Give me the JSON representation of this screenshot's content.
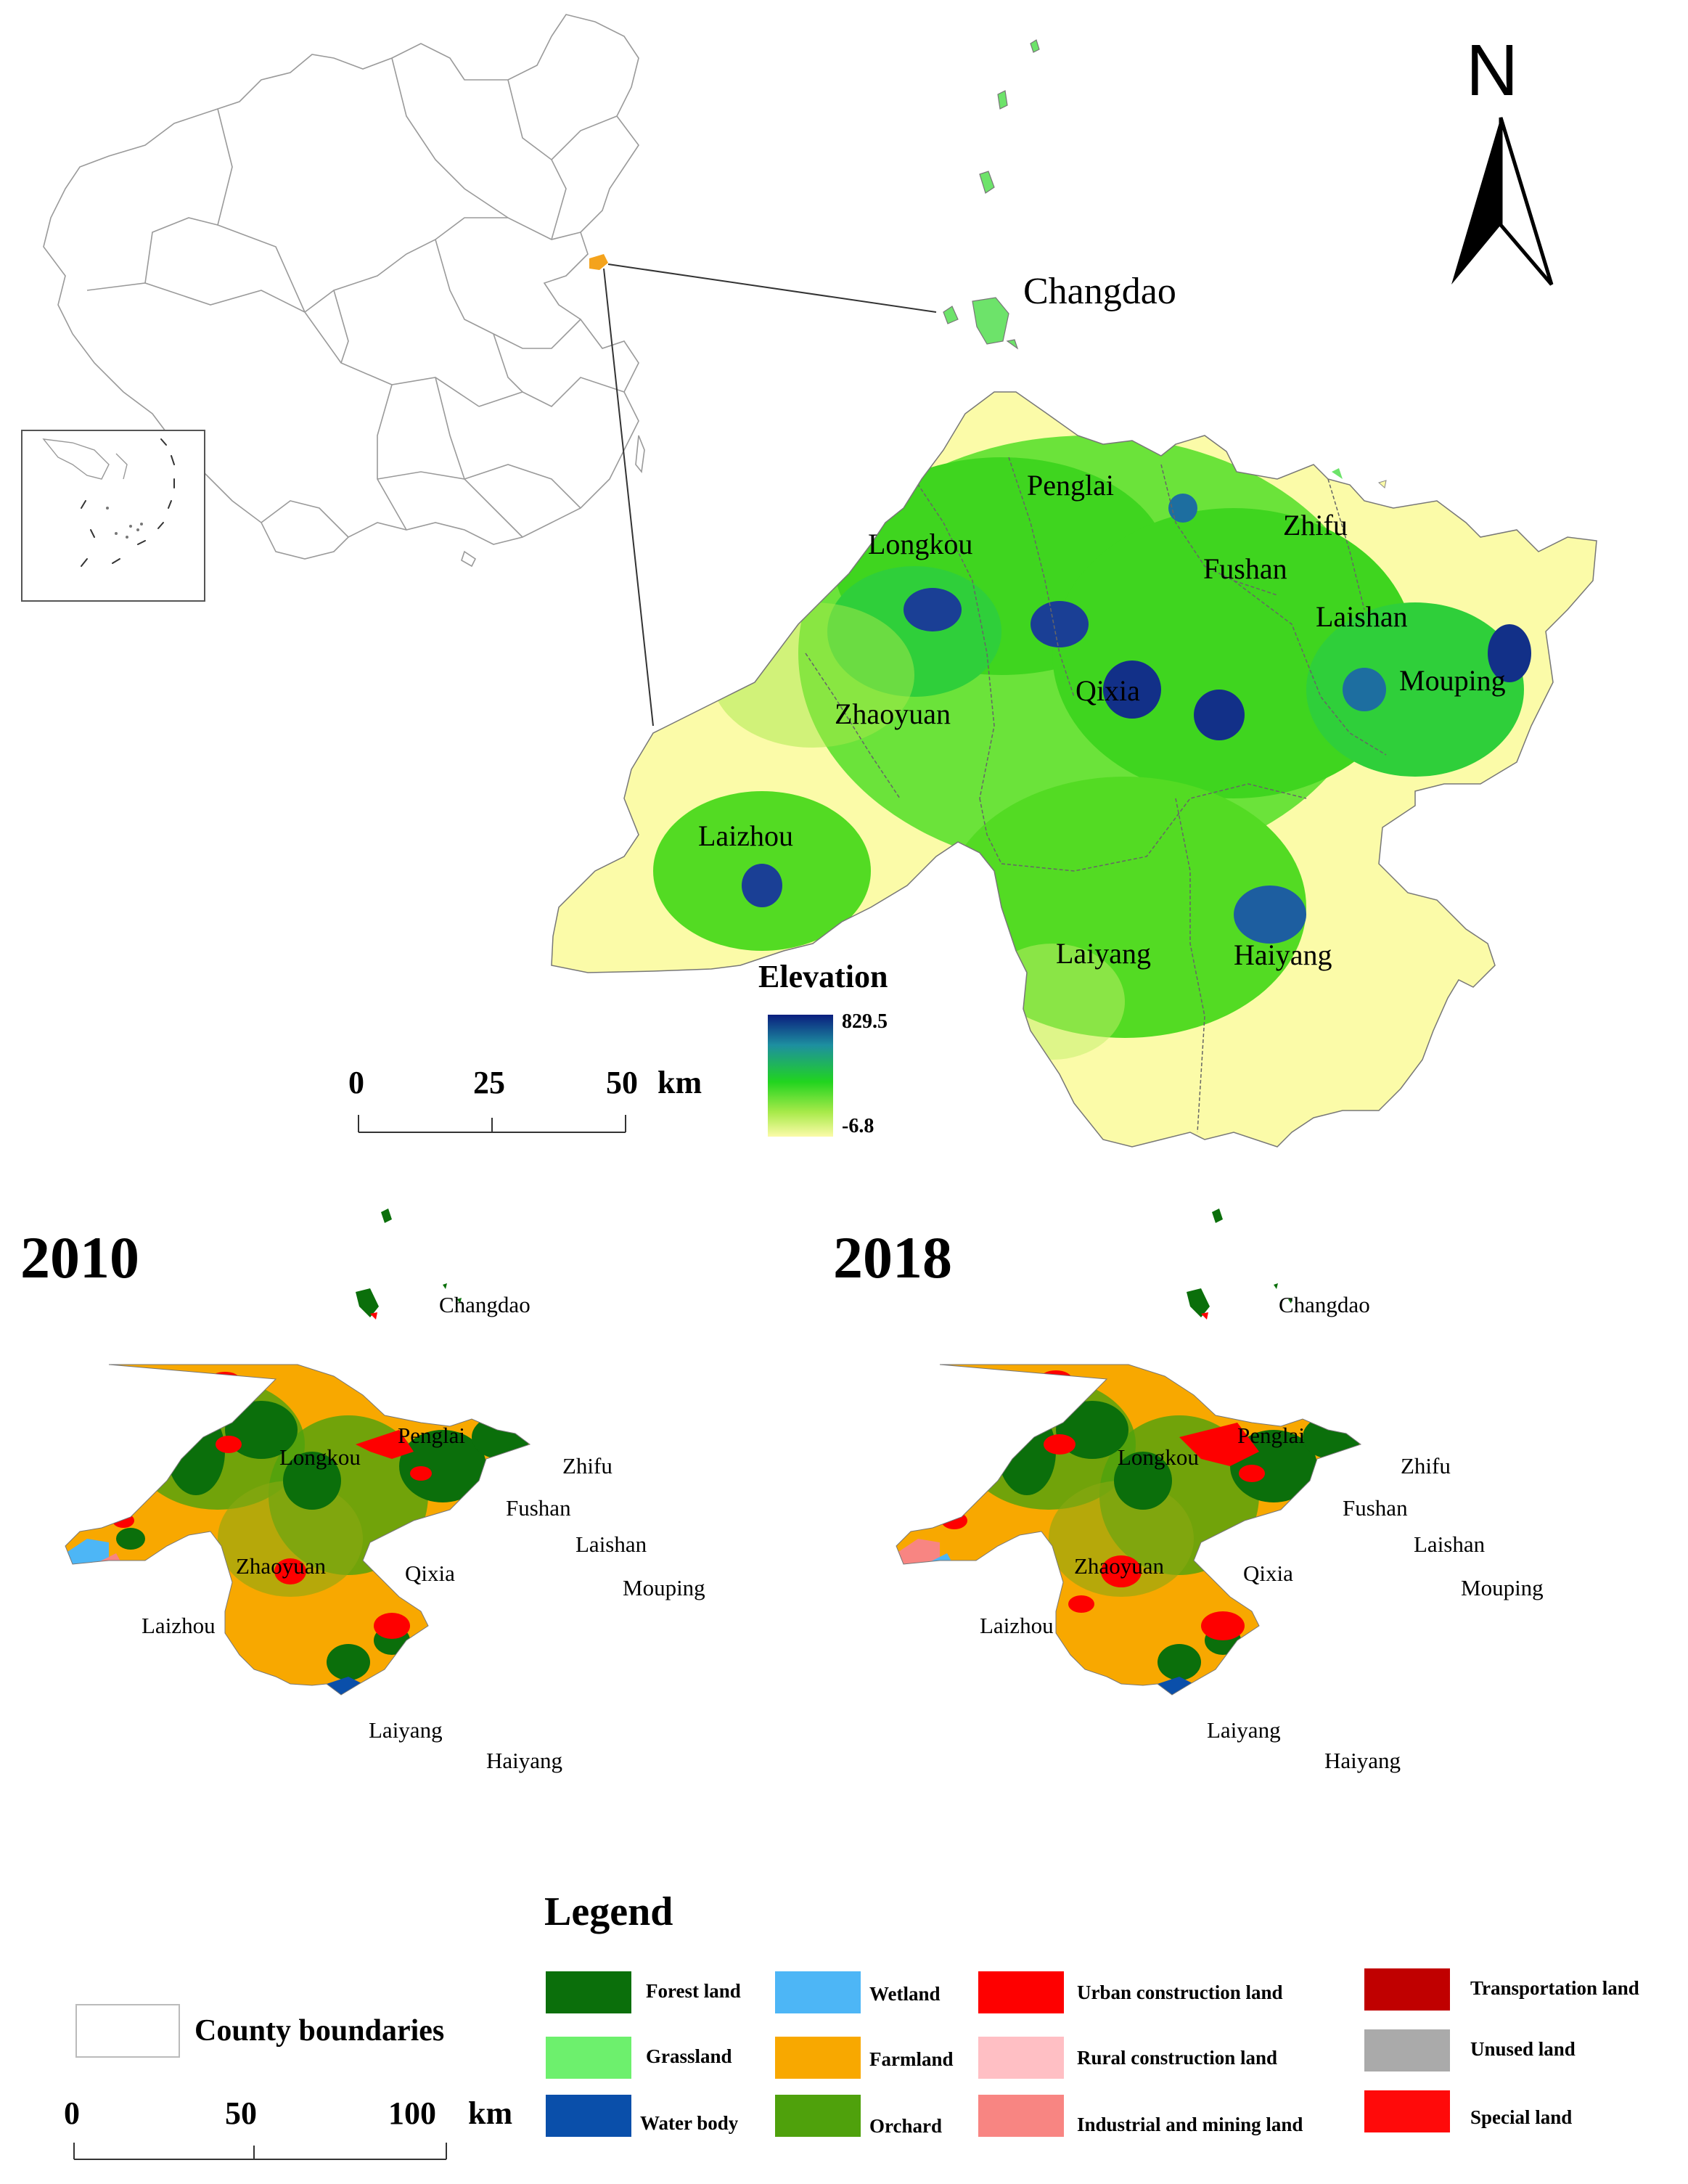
{
  "north_arrow": {
    "letter": "N"
  },
  "inset": {
    "highlight_label": "Changdao"
  },
  "elevation_map": {
    "counties": [
      "Penglai",
      "Zhifu",
      "Longkou",
      "Fushan",
      "Laishan",
      "Mouping",
      "Qixia",
      "Zhaoyuan",
      "Laizhou",
      "Laiyang",
      "Haiyang"
    ],
    "legend": {
      "title": "Elevation",
      "max": "829.5",
      "min": "-6.8",
      "colors": [
        "#0a1e7e",
        "#1d8fa0",
        "#21d41f",
        "#a8ea4a",
        "#fbfba8"
      ]
    },
    "scale": {
      "ticks": [
        "0",
        "25",
        "50"
      ],
      "unit": "km"
    }
  },
  "landuse_maps": [
    {
      "year": "2010",
      "labels": {
        "changdao": "Changdao",
        "penglai": "Penglai",
        "longkou": "Longkou",
        "zhifu": "Zhifu",
        "fushan": "Fushan",
        "laishan": "Laishan",
        "zhaoyuan": "Zhaoyuan",
        "qixia": "Qixia",
        "mouping": "Mouping",
        "laizhou": "Laizhou",
        "laiyang": "Laiyang",
        "haiyang": "Haiyang"
      }
    },
    {
      "year": "2018",
      "labels": {
        "changdao": "Changdao",
        "penglai": "Penglai",
        "longkou": "Longkou",
        "zhifu": "Zhifu",
        "fushan": "Fushan",
        "laishan": "Laishan",
        "zhaoyuan": "Zhaoyuan",
        "qixia": "Qixia",
        "mouping": "Mouping",
        "laizhou": "Laizhou",
        "laiyang": "Laiyang",
        "haiyang": "Haiyang"
      }
    }
  ],
  "legend": {
    "title": "Legend",
    "boundary_label": "County boundaries",
    "items": [
      {
        "label": "Forest land",
        "color": "#0b6f0b"
      },
      {
        "label": "Grassland",
        "color": "#6df06d"
      },
      {
        "label": "Water body",
        "color": "#0a4faa"
      },
      {
        "label": "Wetland",
        "color": "#4db6f6"
      },
      {
        "label": "Farmland",
        "color": "#f8a800"
      },
      {
        "label": "Orchard",
        "color": "#4fa10c"
      },
      {
        "label": "Urban construction land",
        "color": "#fe0000"
      },
      {
        "label": "Rural construction land",
        "color": "#ffbfc4"
      },
      {
        "label": "Industrial and mining land",
        "color": "#f88582"
      },
      {
        "label": "Transportation land",
        "color": "#c00000"
      },
      {
        "label": "Unused land",
        "color": "#aaaaaa"
      },
      {
        "label": "Special land",
        "color": "#ff0a0a"
      }
    ],
    "scale": {
      "ticks": [
        "0",
        "50",
        "100"
      ],
      "unit": "km"
    }
  }
}
